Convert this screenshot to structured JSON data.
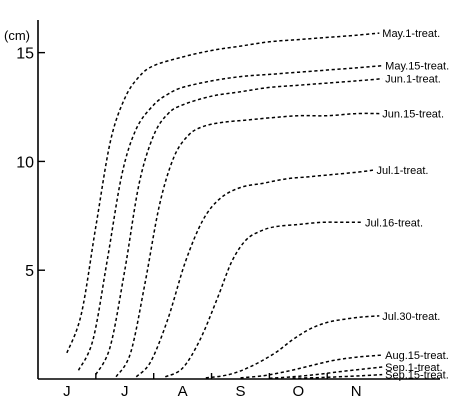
{
  "chart_data": {
    "type": "line",
    "xlabel": "",
    "ylabel": "(cm)",
    "ylim": [
      0,
      16.5
    ],
    "xlim": [
      0,
      6.5
    ],
    "grid": false,
    "x_ticks": [
      {
        "label": "J",
        "value": 0.5
      },
      {
        "label": "J",
        "value": 1.5
      },
      {
        "label": "A",
        "value": 2.5
      },
      {
        "label": "S",
        "value": 3.5
      },
      {
        "label": "O",
        "value": 4.5
      },
      {
        "label": "N",
        "value": 5.5
      }
    ],
    "x_minor_ticks": [
      1,
      2,
      3,
      4,
      5
    ],
    "y_ticks": [
      {
        "label": "5",
        "value": 5
      },
      {
        "label": "10",
        "value": 10
      },
      {
        "label": "15",
        "value": 15
      }
    ],
    "series": [
      {
        "name": "May.1-treat.",
        "x": [
          0.5,
          0.75,
          1.0,
          1.25,
          1.5,
          1.75,
          2.0,
          2.5,
          3.0,
          3.5,
          4.0,
          4.5,
          5.0,
          5.5,
          5.9
        ],
        "y": [
          1.2,
          3.0,
          7.0,
          10.9,
          12.9,
          13.9,
          14.4,
          14.8,
          15.1,
          15.3,
          15.5,
          15.6,
          15.7,
          15.8,
          15.9
        ]
      },
      {
        "name": "May.15-treat.",
        "x": [
          0.7,
          0.95,
          1.2,
          1.45,
          1.7,
          2.0,
          2.25,
          2.5,
          3.0,
          3.5,
          4.0,
          4.5,
          5.0,
          5.5,
          5.95
        ],
        "y": [
          0.4,
          1.8,
          5.5,
          9.4,
          11.5,
          12.6,
          13.1,
          13.4,
          13.7,
          13.9,
          14.0,
          14.1,
          14.2,
          14.3,
          14.4
        ]
      },
      {
        "name": "Jun.1-treat.",
        "x": [
          1.0,
          1.25,
          1.5,
          1.75,
          2.0,
          2.25,
          2.5,
          3.0,
          3.5,
          4.0,
          4.5,
          5.0,
          5.5,
          5.95
        ],
        "y": [
          0.2,
          1.5,
          5.0,
          9.0,
          11.2,
          12.2,
          12.6,
          13.0,
          13.2,
          13.4,
          13.5,
          13.6,
          13.7,
          13.8
        ]
      },
      {
        "name": "Jun.15-treat.",
        "x": [
          1.35,
          1.6,
          1.85,
          2.1,
          2.35,
          2.6,
          2.85,
          3.2,
          3.6,
          4.0,
          4.5,
          5.0,
          5.5,
          5.9
        ],
        "y": [
          0.1,
          1.2,
          4.4,
          8.0,
          10.2,
          11.2,
          11.6,
          11.8,
          11.9,
          12.0,
          12.1,
          12.1,
          12.2,
          12.2
        ]
      },
      {
        "name": "Jul.1-treat.",
        "x": [
          1.7,
          1.95,
          2.25,
          2.55,
          2.85,
          3.15,
          3.5,
          3.9,
          4.3,
          4.7,
          5.1,
          5.5,
          5.8
        ],
        "y": [
          0.1,
          0.8,
          2.8,
          5.4,
          7.3,
          8.3,
          8.8,
          9.0,
          9.2,
          9.3,
          9.4,
          9.5,
          9.6
        ]
      },
      {
        "name": "Jul.16-treat.",
        "x": [
          2.2,
          2.5,
          2.8,
          3.1,
          3.35,
          3.6,
          3.85,
          4.1,
          4.5,
          4.9,
          5.3,
          5.6
        ],
        "y": [
          0.1,
          0.5,
          1.8,
          3.7,
          5.4,
          6.4,
          6.8,
          7.0,
          7.1,
          7.2,
          7.2,
          7.2
        ]
      },
      {
        "name": "Jul.30-treat.",
        "x": [
          2.9,
          3.3,
          3.7,
          4.1,
          4.4,
          4.7,
          5.0,
          5.3,
          5.6,
          5.9
        ],
        "y": [
          0.05,
          0.2,
          0.6,
          1.2,
          1.8,
          2.3,
          2.6,
          2.75,
          2.85,
          2.9
        ]
      },
      {
        "name": "Aug.15-treat.",
        "x": [
          3.5,
          3.9,
          4.3,
          4.7,
          5.1,
          5.5,
          5.95
        ],
        "y": [
          0.05,
          0.15,
          0.35,
          0.6,
          0.85,
          1.0,
          1.1
        ]
      },
      {
        "name": "Sep.1-treat.",
        "x": [
          4.0,
          4.4,
          4.8,
          5.2,
          5.6,
          5.95
        ],
        "y": [
          0.03,
          0.1,
          0.2,
          0.33,
          0.45,
          0.55
        ]
      },
      {
        "name": "Sep.15-treat.",
        "x": [
          4.4,
          4.8,
          5.2,
          5.6,
          5.95
        ],
        "y": [
          0.03,
          0.06,
          0.1,
          0.15,
          0.2
        ]
      }
    ]
  }
}
